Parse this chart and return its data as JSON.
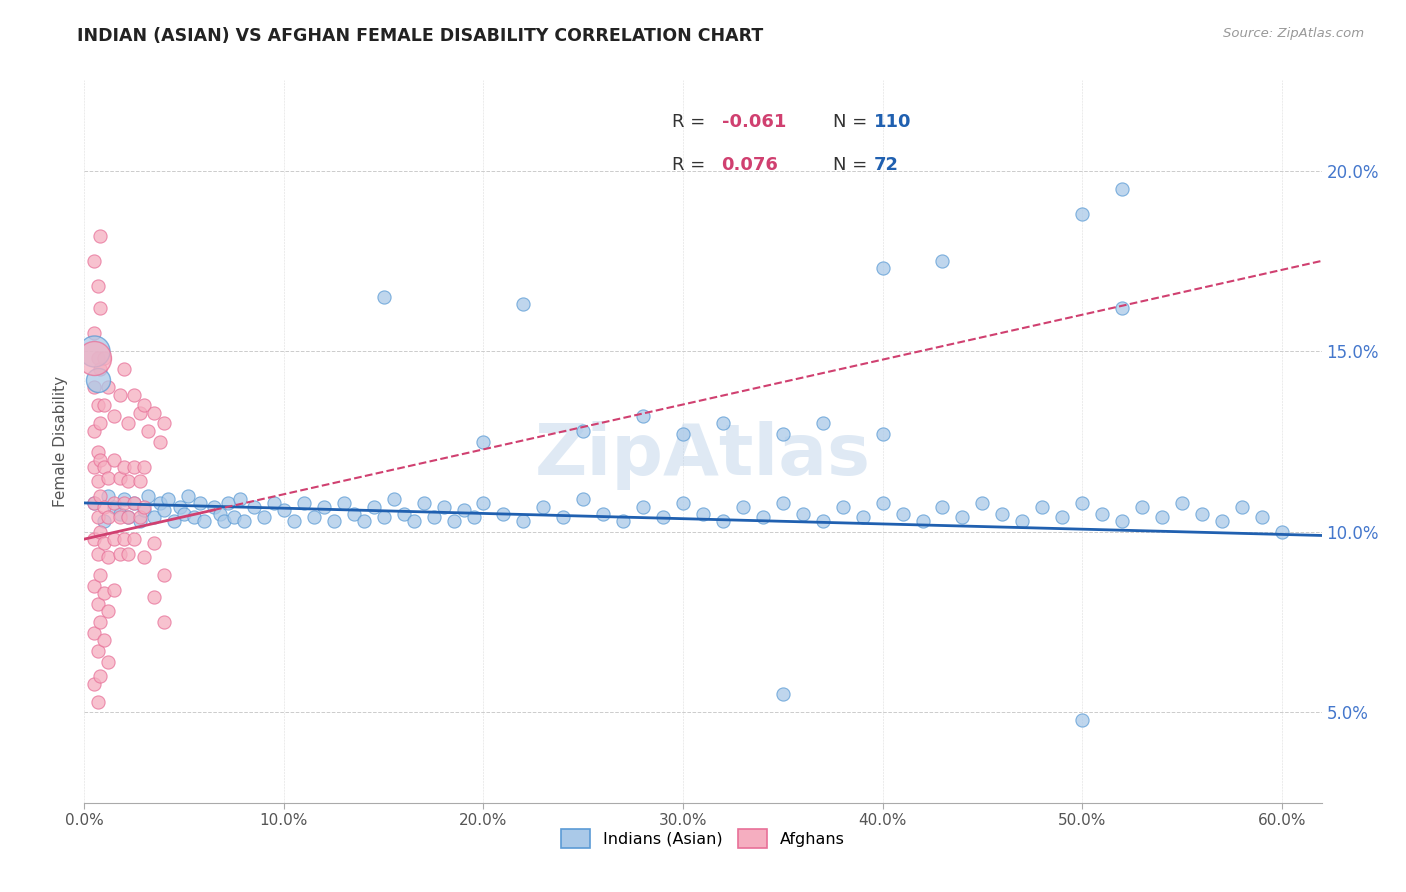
{
  "title": "INDIAN (ASIAN) VS AFGHAN FEMALE DISABILITY CORRELATION CHART",
  "source": "Source: ZipAtlas.com",
  "ylabel": "Female Disability",
  "xlim": [
    0.0,
    0.62
  ],
  "ylim": [
    0.025,
    0.225
  ],
  "x_tick_vals": [
    0.0,
    0.1,
    0.2,
    0.3,
    0.4,
    0.5,
    0.6
  ],
  "x_tick_labels": [
    "0.0%",
    "10.0%",
    "20.0%",
    "30.0%",
    "40.0%",
    "50.0%",
    "60.0%"
  ],
  "y_tick_vals": [
    0.05,
    0.1,
    0.15,
    0.2
  ],
  "y_tick_labels": [
    "5.0%",
    "10.0%",
    "15.0%",
    "20.0%"
  ],
  "blue_color": "#aac9e8",
  "pink_color": "#f5aec0",
  "blue_edge": "#5b9bd5",
  "pink_edge": "#e87098",
  "blue_trend_color": "#2060b0",
  "pink_trend_color": "#d04070",
  "watermark": "ZipAtlas",
  "legend_r_color": "#d04070",
  "legend_n_color": "#2060b0",
  "legend_label_color": "#333333",
  "blue_trendline": [
    [
      0.0,
      0.108
    ],
    [
      0.62,
      0.099
    ]
  ],
  "pink_trendline": [
    [
      0.0,
      0.098
    ],
    [
      0.08,
      0.125
    ]
  ],
  "pink_trendline_ext": [
    [
      0.0,
      0.098
    ],
    [
      0.62,
      0.175
    ]
  ],
  "blue_points": [
    [
      0.005,
      0.108
    ],
    [
      0.01,
      0.103
    ],
    [
      0.012,
      0.11
    ],
    [
      0.015,
      0.107
    ],
    [
      0.018,
      0.105
    ],
    [
      0.02,
      0.109
    ],
    [
      0.022,
      0.104
    ],
    [
      0.025,
      0.108
    ],
    [
      0.028,
      0.103
    ],
    [
      0.03,
      0.106
    ],
    [
      0.032,
      0.11
    ],
    [
      0.035,
      0.104
    ],
    [
      0.038,
      0.108
    ],
    [
      0.04,
      0.106
    ],
    [
      0.042,
      0.109
    ],
    [
      0.045,
      0.103
    ],
    [
      0.048,
      0.107
    ],
    [
      0.05,
      0.105
    ],
    [
      0.052,
      0.11
    ],
    [
      0.055,
      0.104
    ],
    [
      0.058,
      0.108
    ],
    [
      0.06,
      0.103
    ],
    [
      0.065,
      0.107
    ],
    [
      0.068,
      0.105
    ],
    [
      0.07,
      0.103
    ],
    [
      0.072,
      0.108
    ],
    [
      0.075,
      0.104
    ],
    [
      0.078,
      0.109
    ],
    [
      0.08,
      0.103
    ],
    [
      0.085,
      0.107
    ],
    [
      0.09,
      0.104
    ],
    [
      0.095,
      0.108
    ],
    [
      0.1,
      0.106
    ],
    [
      0.105,
      0.103
    ],
    [
      0.11,
      0.108
    ],
    [
      0.115,
      0.104
    ],
    [
      0.12,
      0.107
    ],
    [
      0.125,
      0.103
    ],
    [
      0.13,
      0.108
    ],
    [
      0.135,
      0.105
    ],
    [
      0.14,
      0.103
    ],
    [
      0.145,
      0.107
    ],
    [
      0.15,
      0.104
    ],
    [
      0.155,
      0.109
    ],
    [
      0.16,
      0.105
    ],
    [
      0.165,
      0.103
    ],
    [
      0.17,
      0.108
    ],
    [
      0.175,
      0.104
    ],
    [
      0.18,
      0.107
    ],
    [
      0.185,
      0.103
    ],
    [
      0.19,
      0.106
    ],
    [
      0.195,
      0.104
    ],
    [
      0.2,
      0.108
    ],
    [
      0.21,
      0.105
    ],
    [
      0.22,
      0.103
    ],
    [
      0.23,
      0.107
    ],
    [
      0.24,
      0.104
    ],
    [
      0.25,
      0.109
    ],
    [
      0.26,
      0.105
    ],
    [
      0.27,
      0.103
    ],
    [
      0.28,
      0.107
    ],
    [
      0.29,
      0.104
    ],
    [
      0.3,
      0.108
    ],
    [
      0.31,
      0.105
    ],
    [
      0.32,
      0.103
    ],
    [
      0.33,
      0.107
    ],
    [
      0.34,
      0.104
    ],
    [
      0.35,
      0.108
    ],
    [
      0.36,
      0.105
    ],
    [
      0.37,
      0.103
    ],
    [
      0.38,
      0.107
    ],
    [
      0.39,
      0.104
    ],
    [
      0.4,
      0.108
    ],
    [
      0.41,
      0.105
    ],
    [
      0.42,
      0.103
    ],
    [
      0.43,
      0.107
    ],
    [
      0.44,
      0.104
    ],
    [
      0.45,
      0.108
    ],
    [
      0.46,
      0.105
    ],
    [
      0.47,
      0.103
    ],
    [
      0.48,
      0.107
    ],
    [
      0.49,
      0.104
    ],
    [
      0.5,
      0.108
    ],
    [
      0.51,
      0.105
    ],
    [
      0.52,
      0.103
    ],
    [
      0.53,
      0.107
    ],
    [
      0.54,
      0.104
    ],
    [
      0.55,
      0.108
    ],
    [
      0.56,
      0.105
    ],
    [
      0.57,
      0.103
    ],
    [
      0.58,
      0.107
    ],
    [
      0.59,
      0.104
    ],
    [
      0.6,
      0.1
    ],
    [
      0.2,
      0.125
    ],
    [
      0.25,
      0.128
    ],
    [
      0.28,
      0.132
    ],
    [
      0.3,
      0.127
    ],
    [
      0.32,
      0.13
    ],
    [
      0.35,
      0.127
    ],
    [
      0.37,
      0.13
    ],
    [
      0.4,
      0.127
    ],
    [
      0.15,
      0.165
    ],
    [
      0.22,
      0.163
    ],
    [
      0.4,
      0.173
    ],
    [
      0.52,
      0.162
    ],
    [
      0.52,
      0.195
    ],
    [
      0.5,
      0.188
    ],
    [
      0.43,
      0.175
    ],
    [
      0.35,
      0.055
    ],
    [
      0.5,
      0.048
    ]
  ],
  "blue_large_points": [
    [
      0.005,
      0.15,
      500
    ],
    [
      0.007,
      0.142,
      300
    ]
  ],
  "pink_points": [
    [
      0.005,
      0.175
    ],
    [
      0.007,
      0.168
    ],
    [
      0.008,
      0.182
    ],
    [
      0.005,
      0.155
    ],
    [
      0.007,
      0.148
    ],
    [
      0.008,
      0.162
    ],
    [
      0.005,
      0.14
    ],
    [
      0.007,
      0.135
    ],
    [
      0.008,
      0.145
    ],
    [
      0.01,
      0.148
    ],
    [
      0.005,
      0.128
    ],
    [
      0.007,
      0.122
    ],
    [
      0.008,
      0.13
    ],
    [
      0.01,
      0.135
    ],
    [
      0.012,
      0.14
    ],
    [
      0.015,
      0.132
    ],
    [
      0.018,
      0.138
    ],
    [
      0.02,
      0.145
    ],
    [
      0.022,
      0.13
    ],
    [
      0.025,
      0.138
    ],
    [
      0.028,
      0.133
    ],
    [
      0.03,
      0.135
    ],
    [
      0.032,
      0.128
    ],
    [
      0.035,
      0.133
    ],
    [
      0.038,
      0.125
    ],
    [
      0.04,
      0.13
    ],
    [
      0.005,
      0.118
    ],
    [
      0.007,
      0.114
    ],
    [
      0.008,
      0.12
    ],
    [
      0.01,
      0.118
    ],
    [
      0.012,
      0.115
    ],
    [
      0.015,
      0.12
    ],
    [
      0.018,
      0.115
    ],
    [
      0.02,
      0.118
    ],
    [
      0.022,
      0.114
    ],
    [
      0.025,
      0.118
    ],
    [
      0.028,
      0.114
    ],
    [
      0.03,
      0.118
    ],
    [
      0.005,
      0.108
    ],
    [
      0.007,
      0.104
    ],
    [
      0.008,
      0.11
    ],
    [
      0.01,
      0.107
    ],
    [
      0.012,
      0.104
    ],
    [
      0.015,
      0.108
    ],
    [
      0.018,
      0.104
    ],
    [
      0.02,
      0.108
    ],
    [
      0.022,
      0.104
    ],
    [
      0.025,
      0.108
    ],
    [
      0.028,
      0.104
    ],
    [
      0.03,
      0.107
    ],
    [
      0.005,
      0.098
    ],
    [
      0.007,
      0.094
    ],
    [
      0.008,
      0.1
    ],
    [
      0.01,
      0.097
    ],
    [
      0.012,
      0.093
    ],
    [
      0.015,
      0.098
    ],
    [
      0.018,
      0.094
    ],
    [
      0.02,
      0.098
    ],
    [
      0.022,
      0.094
    ],
    [
      0.005,
      0.085
    ],
    [
      0.007,
      0.08
    ],
    [
      0.008,
      0.088
    ],
    [
      0.01,
      0.083
    ],
    [
      0.012,
      0.078
    ],
    [
      0.015,
      0.084
    ],
    [
      0.005,
      0.072
    ],
    [
      0.007,
      0.067
    ],
    [
      0.008,
      0.075
    ],
    [
      0.01,
      0.07
    ],
    [
      0.012,
      0.064
    ],
    [
      0.005,
      0.058
    ],
    [
      0.007,
      0.053
    ],
    [
      0.008,
      0.06
    ],
    [
      0.025,
      0.098
    ],
    [
      0.03,
      0.093
    ],
    [
      0.035,
      0.097
    ],
    [
      0.04,
      0.088
    ],
    [
      0.035,
      0.082
    ],
    [
      0.04,
      0.075
    ]
  ],
  "pink_large_points": [
    [
      0.005,
      0.148,
      600
    ]
  ]
}
